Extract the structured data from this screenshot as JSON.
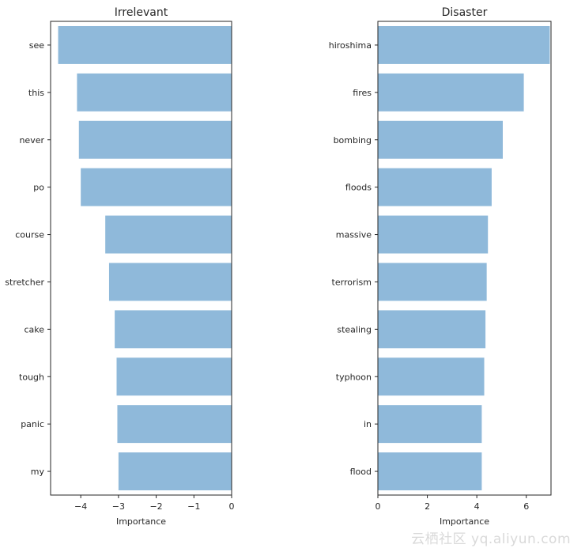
{
  "chart_data": [
    {
      "type": "bar",
      "orientation": "horizontal",
      "title": "Irrelevant",
      "xlabel": "Importance",
      "ylabel": "",
      "categories": [
        "see",
        "this",
        "never",
        "po",
        "course",
        "stretcher",
        "cake",
        "tough",
        "panic",
        "my"
      ],
      "values": [
        -4.6,
        -4.1,
        -4.05,
        -4.0,
        -3.35,
        -3.25,
        -3.1,
        -3.05,
        -3.03,
        -3.0
      ],
      "xlim": [
        -4.8,
        0
      ],
      "xticks": [
        -4,
        -3,
        -2,
        -1,
        0
      ],
      "xtick_labels": [
        "−4",
        "−3",
        "−2",
        "−1",
        "0"
      ],
      "bar_color": "#8fb9da",
      "grid": false
    },
    {
      "type": "bar",
      "orientation": "horizontal",
      "title": "Disaster",
      "xlabel": "Importance",
      "ylabel": "",
      "categories": [
        "hiroshima",
        "fires",
        "bombing",
        "floods",
        "massive",
        "terrorism",
        "stealing",
        "typhoon",
        "in",
        "flood"
      ],
      "values": [
        6.95,
        5.9,
        5.05,
        4.6,
        4.45,
        4.4,
        4.35,
        4.3,
        4.2,
        4.2
      ],
      "xlim": [
        0,
        7.0
      ],
      "xticks": [
        0,
        2,
        4,
        6
      ],
      "xtick_labels": [
        "0",
        "2",
        "4",
        "6"
      ],
      "bar_color": "#8fb9da",
      "grid": false
    }
  ],
  "watermark": "云栖社区 yq.aliyun.com"
}
